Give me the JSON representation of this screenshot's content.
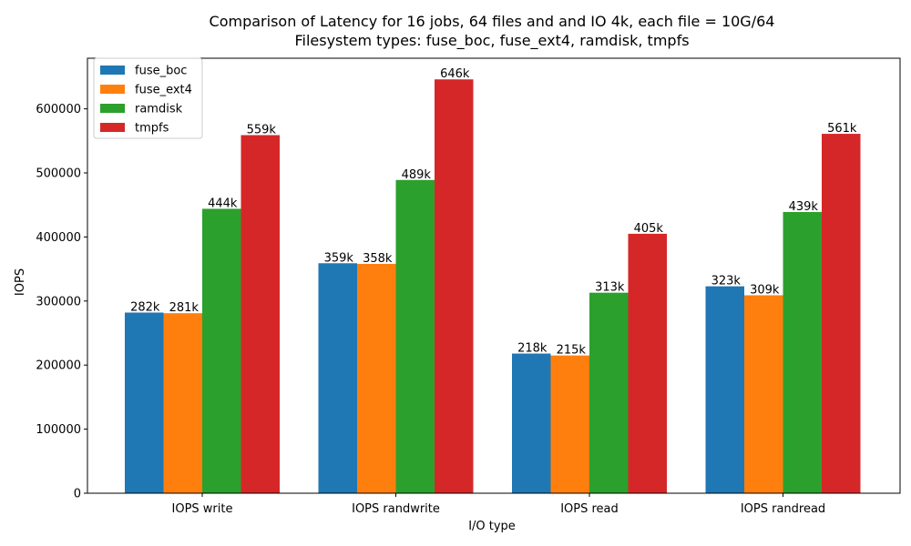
{
  "chart_data": {
    "type": "bar",
    "title": "Comparison of Latency for 16 jobs, 64 files and  and IO 4k, each file = 10G/64",
    "subtitle": "Filesystem types: fuse_boc, fuse_ext4, ramdisk, tmpfs",
    "xlabel": "I/O type",
    "ylabel": "IOPS",
    "categories": [
      "IOPS write",
      "IOPS randwrite",
      "IOPS read",
      "IOPS randread"
    ],
    "ylim": [
      0,
      679000
    ],
    "yticks": [
      0,
      100000,
      200000,
      300000,
      400000,
      500000,
      600000
    ],
    "ytick_labels": [
      "0",
      "100000",
      "200000",
      "300000",
      "400000",
      "500000",
      "600000"
    ],
    "grid": false,
    "legend_position": "top-left",
    "series": [
      {
        "name": "fuse_boc",
        "color": "#1f77b4",
        "values": [
          282000,
          359000,
          218000,
          323000
        ],
        "labels": [
          "282k",
          "359k",
          "218k",
          "323k"
        ]
      },
      {
        "name": "fuse_ext4",
        "color": "#ff7f0e",
        "values": [
          281000,
          358000,
          215000,
          309000
        ],
        "labels": [
          "281k",
          "358k",
          "215k",
          "309k"
        ]
      },
      {
        "name": "ramdisk",
        "color": "#2ca02c",
        "values": [
          444000,
          489000,
          313000,
          439000
        ],
        "labels": [
          "444k",
          "489k",
          "313k",
          "439k"
        ]
      },
      {
        "name": "tmpfs",
        "color": "#d62728",
        "values": [
          559000,
          646000,
          405000,
          561000
        ],
        "labels": [
          "559k",
          "646k",
          "405k",
          "561k"
        ]
      }
    ]
  }
}
